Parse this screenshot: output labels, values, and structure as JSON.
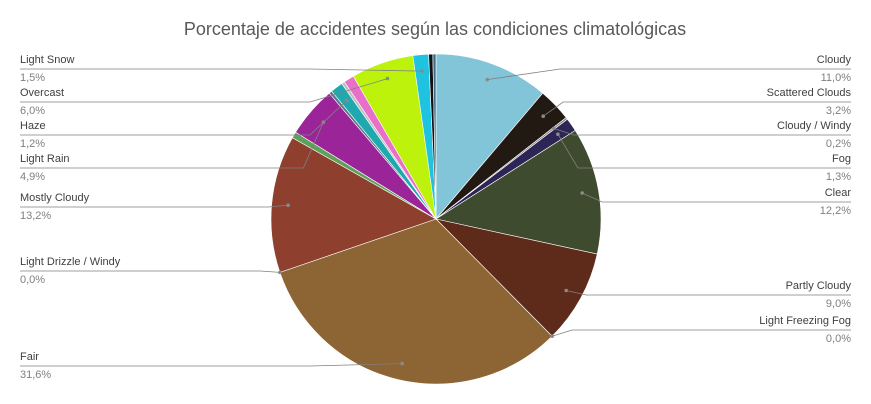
{
  "chart_data": {
    "type": "pie",
    "title": "Porcentaje de accidentes según las condiciones climatológicas",
    "slices": [
      {
        "label": "Cloudy",
        "value": 11.0,
        "display": "11,0%",
        "color": "#82C4D8",
        "side": "right"
      },
      {
        "label": "Scattered Clouds",
        "value": 3.2,
        "display": "3,2%",
        "color": "#221A12",
        "side": "right"
      },
      {
        "label": "Cloudy / Windy",
        "value": 0.2,
        "display": "0,2%",
        "color": "#8B8B8B",
        "side": "right"
      },
      {
        "label": "Fog",
        "value": 1.3,
        "display": "1,3%",
        "color": "#2C2555",
        "side": "right"
      },
      {
        "label": "Clear",
        "value": 12.2,
        "display": "12,2%",
        "color": "#3F4B2F",
        "side": "right"
      },
      {
        "label": "Partly Cloudy",
        "value": 9.0,
        "display": "9,0%",
        "color": "#5E2A1A",
        "side": "right"
      },
      {
        "label": "Light Freezing Fog",
        "value": 0.0,
        "display": "0,0%",
        "color": "#7A6C50",
        "side": "right"
      },
      {
        "label": "Fair",
        "value": 31.6,
        "display": "31,6%",
        "color": "#8D6535",
        "side": "left"
      },
      {
        "label": "Light Drizzle / Windy",
        "value": 0.0,
        "display": "0,0%",
        "color": "#B0B0B0",
        "side": "left"
      },
      {
        "label": "Mostly Cloudy",
        "value": 13.2,
        "display": "13,2%",
        "color": "#8E3F2E",
        "side": "left"
      },
      {
        "label": "Light Rain",
        "value": 0.6,
        "display": "",
        "color": "#5FA05A",
        "side": "none"
      },
      {
        "label": "Light Rain",
        "value": 4.9,
        "display": "4,9%",
        "color": "#9A2498",
        "side": "left"
      },
      {
        "label": "",
        "value": 0.3,
        "display": "",
        "color": "#5A7A8A",
        "side": "none"
      },
      {
        "label": "Haze",
        "value": 1.2,
        "display": "1,2%",
        "color": "#1FA9AE",
        "side": "left"
      },
      {
        "label": "",
        "value": 0.3,
        "display": "",
        "color": "#C0C0C0",
        "side": "none"
      },
      {
        "label": "",
        "value": 1.0,
        "display": "",
        "color": "#E970C8",
        "side": "none"
      },
      {
        "label": "Overcast",
        "value": 6.0,
        "display": "6,0%",
        "color": "#BCF20C",
        "side": "left"
      },
      {
        "label": "Light Snow",
        "value": 1.5,
        "display": "1,5%",
        "color": "#1FC3E0",
        "side": "left"
      },
      {
        "label": "",
        "value": 0.4,
        "display": "",
        "color": "#111111",
        "side": "none"
      },
      {
        "label": "",
        "value": 0.3,
        "display": "",
        "color": "#3C6E8C",
        "side": "none"
      }
    ]
  }
}
